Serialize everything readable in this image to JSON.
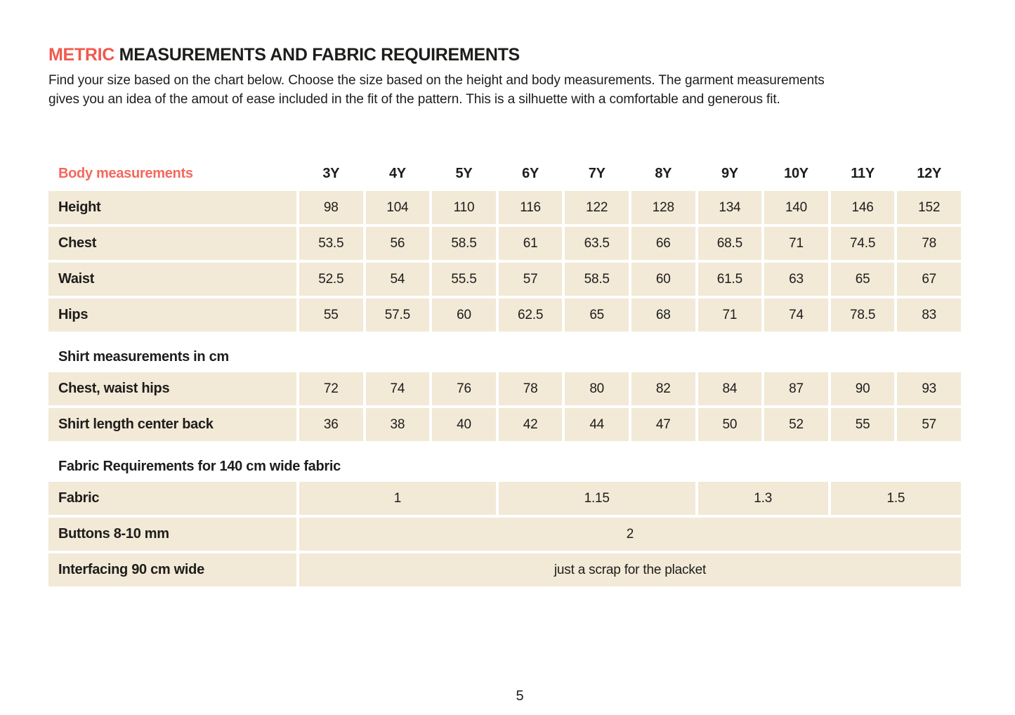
{
  "page": {
    "title_highlight": "METRIC",
    "title_rest": " MEASUREMENTS AND FABRIC REQUIREMENTS",
    "intro_line1": "Find your size based on the chart below. Choose the size based on the height and body measurements. The garment measurements",
    "intro_line2": "gives you an idea of the amout of ease included in the fit of the pattern. This is a silhuette with a comfortable and generous fit.",
    "page_number": "5"
  },
  "colors": {
    "accent": "#f1594e",
    "cell_background": "#f2e9d7",
    "text": "#1d1d1b"
  },
  "table": {
    "header_label": "Body measurements",
    "sizes": [
      "3Y",
      "4Y",
      "5Y",
      "6Y",
      "7Y",
      "8Y",
      "9Y",
      "10Y",
      "11Y",
      "12Y"
    ],
    "body_rows": [
      {
        "label": "Height",
        "values": [
          "98",
          "104",
          "110",
          "116",
          "122",
          "128",
          "134",
          "140",
          "146",
          "152"
        ]
      },
      {
        "label": "Chest",
        "values": [
          "53.5",
          "56",
          "58.5",
          "61",
          "63.5",
          "66",
          "68.5",
          "71",
          "74.5",
          "78"
        ]
      },
      {
        "label": "Waist",
        "values": [
          "52.5",
          "54",
          "55.5",
          "57",
          "58.5",
          "60",
          "61.5",
          "63",
          "65",
          "67"
        ]
      },
      {
        "label": "Hips",
        "values": [
          "55",
          "57.5",
          "60",
          "62.5",
          "65",
          "68",
          "71",
          "74",
          "78.5",
          "83"
        ]
      }
    ],
    "shirt_section_label": "Shirt measurements in cm",
    "shirt_rows": [
      {
        "label": "Chest, waist hips",
        "values": [
          "72",
          "74",
          "76",
          "78",
          "80",
          "82",
          "84",
          "87",
          "90",
          "93"
        ]
      },
      {
        "label": "Shirt length center back",
        "values": [
          "36",
          "38",
          "40",
          "42",
          "44",
          "47",
          "50",
          "52",
          "55",
          "57"
        ]
      }
    ],
    "fabric_section_label": "Fabric Requirements for 140 cm wide fabric",
    "fabric_row": {
      "label": "Fabric",
      "spans": [
        {
          "value": "1",
          "cols": 3
        },
        {
          "value": "1.15",
          "cols": 3
        },
        {
          "value": "1.3",
          "cols": 2
        },
        {
          "value": "1.5",
          "cols": 2
        }
      ]
    },
    "buttons_row": {
      "label": "Buttons 8-10 mm",
      "value": "2"
    },
    "interfacing_row": {
      "label": "Interfacing 90 cm wide",
      "value": "just a scrap for the placket"
    }
  }
}
